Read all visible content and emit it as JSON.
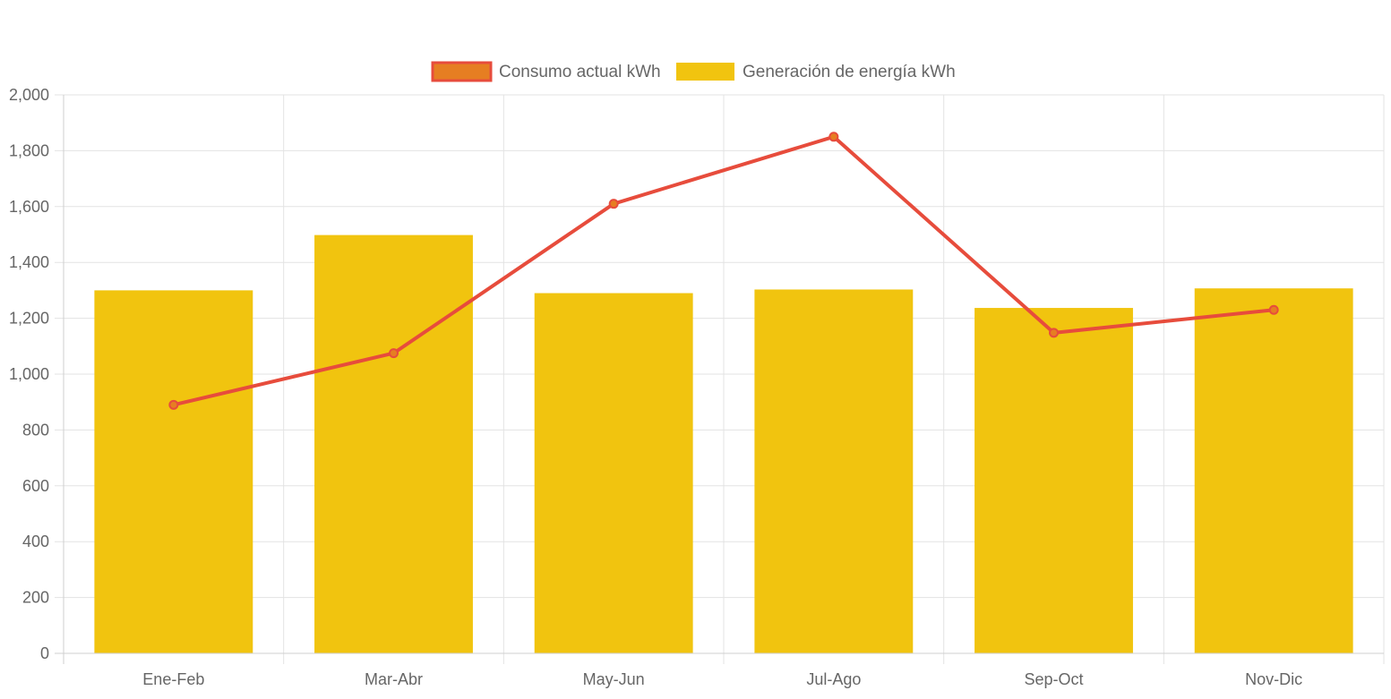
{
  "chart_data": {
    "type": "bar",
    "categories": [
      "Ene-Feb",
      "Mar-Abr",
      "May-Jun",
      "Jul-Ago",
      "Sep-Oct",
      "Nov-Dic"
    ],
    "series": [
      {
        "name": "Consumo actual kWh",
        "type": "line",
        "values": [
          890,
          1075,
          1610,
          1850,
          1148,
          1230
        ],
        "color": "#e74c3c",
        "point_color": "#e67e22"
      },
      {
        "name": "Generación de energía kWh",
        "type": "bar",
        "values": [
          1300,
          1498,
          1290,
          1303,
          1237,
          1307
        ],
        "color": "#f1c40f"
      }
    ],
    "title": "",
    "xlabel": "",
    "ylabel": "",
    "ylim": [
      0,
      2000
    ],
    "yticks": [
      "0",
      "200",
      "400",
      "600",
      "800",
      "1,000",
      "1,200",
      "1,400",
      "1,600",
      "1,800",
      "2,000"
    ],
    "grid": true,
    "legend_position": "top"
  }
}
